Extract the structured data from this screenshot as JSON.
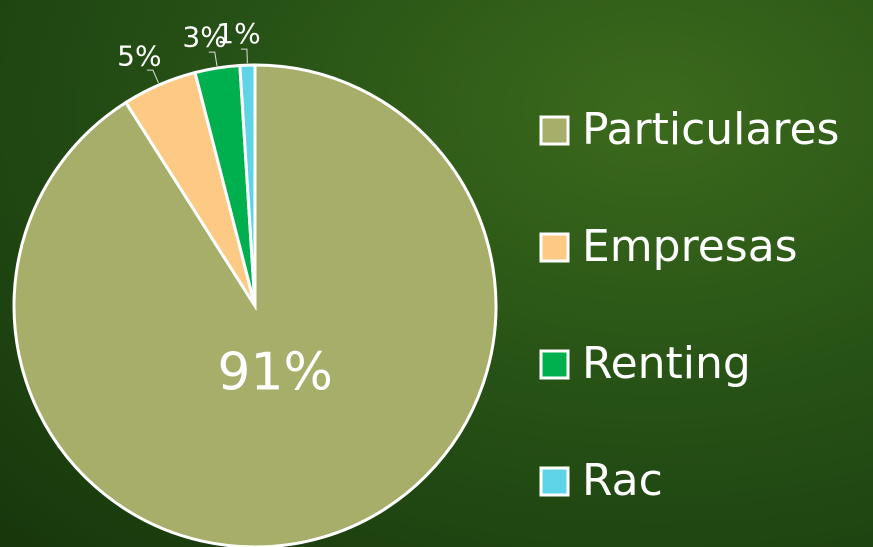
{
  "chart_data": {
    "type": "pie",
    "categories": [
      "Particulares",
      "Empresas",
      "Renting",
      "Rac"
    ],
    "values": [
      91,
      5,
      3,
      1
    ],
    "value_labels": [
      "91%",
      "5%",
      "3%",
      "1%"
    ],
    "colors": [
      "#a6ae6a",
      "#fdca86",
      "#00b04f",
      "#5fd3e8"
    ],
    "legend": "right"
  }
}
